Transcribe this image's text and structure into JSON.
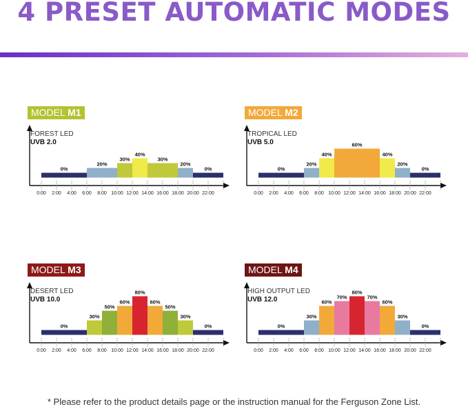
{
  "title": "4 PRESET AUTOMATIC MODES",
  "footnote": "* Please refer to the product details page or the instruction manual for the Ferguson Zone List.",
  "colors": {
    "title": "#8a5ac8",
    "baseline": "#2b2f6b",
    "pct20": "#8fb0c8",
    "pct30": "#bfc93a",
    "pct40": "#f0ea4a",
    "pct60": "#f2a93a",
    "pct50_m3": "#8fb03a",
    "pct70": "#e87aa0",
    "pct80": "#d7252f"
  },
  "chart_data": [
    {
      "type": "bar",
      "badge_prefix": "MODEL",
      "badge_suffix": "M1",
      "badge_color": "#b5c232",
      "habitat": "FOREST LED",
      "uvb": "UVB 2.0",
      "x_ticks": [
        "0:00",
        "2:00",
        "4:00",
        "6:00",
        "8:00",
        "10:00",
        "12:00",
        "14:00",
        "16:00",
        "18:00",
        "20:00",
        "22:00"
      ],
      "segments": [
        {
          "start": 0,
          "end": 6,
          "value": 0,
          "label": "0%",
          "color": "#2b2f6b"
        },
        {
          "start": 6,
          "end": 10,
          "value": 20,
          "label": "20%",
          "color": "#8fb0c8"
        },
        {
          "start": 10,
          "end": 12,
          "value": 30,
          "label": "30%",
          "color": "#bfc93a"
        },
        {
          "start": 12,
          "end": 14,
          "value": 40,
          "label": "40%",
          "color": "#f0ea4a"
        },
        {
          "start": 14,
          "end": 18,
          "value": 30,
          "label": "30%",
          "color": "#bfc93a"
        },
        {
          "start": 18,
          "end": 20,
          "value": 20,
          "label": "20%",
          "color": "#8fb0c8"
        },
        {
          "start": 20,
          "end": 24,
          "value": 0,
          "label": "0%",
          "color": "#2b2f6b"
        }
      ]
    },
    {
      "type": "bar",
      "badge_prefix": "MODEL",
      "badge_suffix": "M2",
      "badge_color": "#f2a93a",
      "habitat": "TROPICAL LED",
      "uvb": "UVB 5.0",
      "x_ticks": [
        "0:00",
        "2:00",
        "4:00",
        "6:00",
        "8:00",
        "10:00",
        "12:00",
        "14:00",
        "16:00",
        "18:00",
        "20:00",
        "22:00"
      ],
      "segments": [
        {
          "start": 0,
          "end": 6,
          "value": 0,
          "label": "0%",
          "color": "#2b2f6b"
        },
        {
          "start": 6,
          "end": 8,
          "value": 20,
          "label": "20%",
          "color": "#8fb0c8"
        },
        {
          "start": 8,
          "end": 10,
          "value": 40,
          "label": "40%",
          "color": "#f0ea4a"
        },
        {
          "start": 10,
          "end": 16,
          "value": 60,
          "label": "60%",
          "color": "#f2a93a"
        },
        {
          "start": 16,
          "end": 18,
          "value": 40,
          "label": "40%",
          "color": "#f0ea4a"
        },
        {
          "start": 18,
          "end": 20,
          "value": 20,
          "label": "20%",
          "color": "#8fb0c8"
        },
        {
          "start": 20,
          "end": 24,
          "value": 0,
          "label": "0%",
          "color": "#2b2f6b"
        }
      ]
    },
    {
      "type": "bar",
      "badge_prefix": "MODEL",
      "badge_suffix": "M3",
      "badge_color": "#8c1a1a",
      "habitat": "DESERT LED",
      "uvb": "UVB 10.0",
      "x_ticks": [
        "0:00",
        "2:00",
        "4:00",
        "6:00",
        "8:00",
        "10:00",
        "12:00",
        "14:00",
        "16:00",
        "18:00",
        "20:00",
        "22:00"
      ],
      "segments": [
        {
          "start": 0,
          "end": 6,
          "value": 0,
          "label": "0%",
          "color": "#2b2f6b"
        },
        {
          "start": 6,
          "end": 8,
          "value": 30,
          "label": "30%",
          "color": "#bfc93a"
        },
        {
          "start": 8,
          "end": 10,
          "value": 50,
          "label": "50%",
          "color": "#8fb03a"
        },
        {
          "start": 10,
          "end": 12,
          "value": 60,
          "label": "60%",
          "color": "#f2a93a"
        },
        {
          "start": 12,
          "end": 14,
          "value": 80,
          "label": "80%",
          "color": "#d7252f"
        },
        {
          "start": 14,
          "end": 16,
          "value": 60,
          "label": "60%",
          "color": "#f2a93a"
        },
        {
          "start": 16,
          "end": 18,
          "value": 50,
          "label": "50%",
          "color": "#8fb03a"
        },
        {
          "start": 18,
          "end": 20,
          "value": 30,
          "label": "30%",
          "color": "#bfc93a"
        },
        {
          "start": 20,
          "end": 24,
          "value": 0,
          "label": "0%",
          "color": "#2b2f6b"
        }
      ]
    },
    {
      "type": "bar",
      "badge_prefix": "MODEL",
      "badge_suffix": "M4",
      "badge_color": "#6e1414",
      "habitat": "HIGH OUTPUT LED",
      "uvb": "UVB 12.0",
      "x_ticks": [
        "0:00",
        "2:00",
        "4:00",
        "6:00",
        "8:00",
        "10:00",
        "12:00",
        "14:00",
        "16:00",
        "18:00",
        "20:00",
        "22:00"
      ],
      "segments": [
        {
          "start": 0,
          "end": 6,
          "value": 0,
          "label": "0%",
          "color": "#2b2f6b"
        },
        {
          "start": 6,
          "end": 8,
          "value": 30,
          "label": "30%",
          "color": "#8fb0c8"
        },
        {
          "start": 8,
          "end": 10,
          "value": 60,
          "label": "60%",
          "color": "#f2a93a"
        },
        {
          "start": 10,
          "end": 12,
          "value": 70,
          "label": "70%",
          "color": "#e87aa0"
        },
        {
          "start": 12,
          "end": 14,
          "value": 80,
          "label": "80%",
          "color": "#d7252f"
        },
        {
          "start": 14,
          "end": 16,
          "value": 70,
          "label": "70%",
          "color": "#e87aa0"
        },
        {
          "start": 16,
          "end": 18,
          "value": 60,
          "label": "60%",
          "color": "#f2a93a"
        },
        {
          "start": 18,
          "end": 20,
          "value": 30,
          "label": "30%",
          "color": "#8fb0c8"
        },
        {
          "start": 20,
          "end": 24,
          "value": 0,
          "label": "0%",
          "color": "#2b2f6b"
        }
      ]
    }
  ]
}
